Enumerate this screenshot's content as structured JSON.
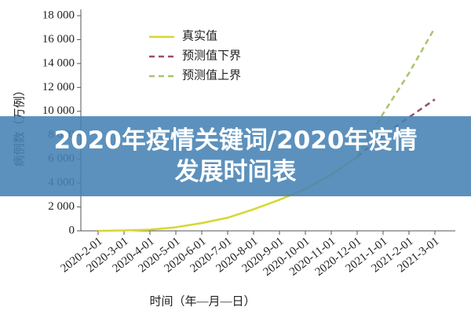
{
  "chart_data": {
    "type": "line",
    "x_label": "时间（年—月—日）",
    "y_label": "病例数（万例）",
    "categories": [
      "2020-2-01",
      "2020-3-01",
      "2020-4-01",
      "2020-5-01",
      "2020-6-01",
      "2020-7-01",
      "2020-8-01",
      "2020-9-01",
      "2020-10-01",
      "2020-11-01",
      "2020-12-01",
      "2021-1-01",
      "2021-2-01",
      "2021-3-01"
    ],
    "series": [
      {
        "name": "真实值",
        "color": "#d8d632",
        "dash": false,
        "values": [
          0,
          30,
          100,
          300,
          650,
          1100,
          1800,
          2600,
          3500,
          4700,
          6200,
          null,
          null,
          null
        ]
      },
      {
        "name": "预测值下界",
        "color": "#9a4d6c",
        "dash": true,
        "values": [
          null,
          null,
          null,
          null,
          null,
          null,
          null,
          null,
          null,
          null,
          6200,
          8000,
          9500,
          11000
        ]
      },
      {
        "name": "预测值上界",
        "color": "#a9c46c",
        "dash": true,
        "values": [
          null,
          null,
          null,
          null,
          null,
          null,
          null,
          null,
          null,
          null,
          6200,
          9800,
          13200,
          17000
        ]
      }
    ],
    "ylim": [
      0,
      18000
    ],
    "yticks": [
      0,
      {
        "value": 2000,
        "label": "2 000"
      },
      {
        "value": 4000,
        "label": "4 000"
      },
      {
        "value": 6000,
        "label": "6 000"
      },
      {
        "value": 8000,
        "label": "8 000"
      },
      {
        "value": 10000,
        "label": "10 000"
      },
      {
        "value": 12000,
        "label": "12 000"
      },
      {
        "value": 14000,
        "label": "14 000"
      },
      {
        "value": 16000,
        "label": "16 000"
      },
      {
        "value": 18000,
        "label": "18 000"
      }
    ],
    "legend": "upper left",
    "grid": false
  },
  "overlay_title_lines": [
    "2020年疫情关键词/2020年疫情",
    "发展时间表"
  ]
}
